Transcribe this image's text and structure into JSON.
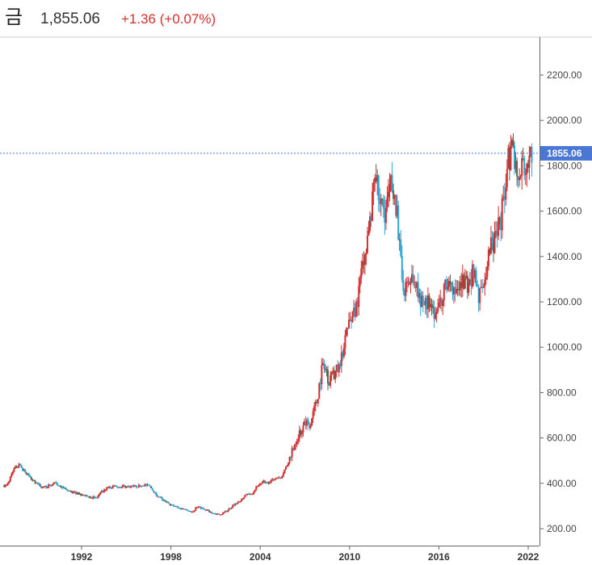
{
  "header": {
    "symbol": "금",
    "price": "1,855.06",
    "change": "+1.36 (+0.07%)"
  },
  "colors": {
    "up": "#d32f2f",
    "down": "#2aa6d6",
    "neutral": "#4e6b57",
    "current_line": "#4a77d4",
    "axis": "#666666"
  },
  "chart_data": {
    "type": "candlestick",
    "y_ticks": [
      "2200.00",
      "2000.00",
      "1800.00",
      "1600.00",
      "1400.00",
      "1200.00",
      "1000.00",
      "800.00",
      "600.00",
      "400.00",
      "200.00"
    ],
    "x_ticks": [
      "1992",
      "1998",
      "2004",
      "2010",
      "2016",
      "2022"
    ],
    "ylim": [
      150,
      2380
    ],
    "xlim": [
      1986.5,
      2022.8
    ],
    "current_value": 1855.06,
    "current_label": "1855.06",
    "series": [
      [
        1987.0,
        390
      ],
      [
        1987.4,
        460
      ],
      [
        1987.8,
        480
      ],
      [
        1988.2,
        450
      ],
      [
        1988.6,
        420
      ],
      [
        1989.0,
        400
      ],
      [
        1989.4,
        380
      ],
      [
        1989.8,
        390
      ],
      [
        1990.2,
        400
      ],
      [
        1990.6,
        385
      ],
      [
        1991.0,
        370
      ],
      [
        1991.4,
        360
      ],
      [
        1991.8,
        355
      ],
      [
        1992.2,
        345
      ],
      [
        1992.6,
        340
      ],
      [
        1993.0,
        335
      ],
      [
        1993.4,
        365
      ],
      [
        1993.8,
        380
      ],
      [
        1994.2,
        385
      ],
      [
        1994.6,
        388
      ],
      [
        1995.0,
        385
      ],
      [
        1995.4,
        386
      ],
      [
        1995.8,
        388
      ],
      [
        1996.2,
        395
      ],
      [
        1996.6,
        385
      ],
      [
        1997.0,
        350
      ],
      [
        1997.4,
        330
      ],
      [
        1997.8,
        310
      ],
      [
        1998.2,
        300
      ],
      [
        1998.6,
        290
      ],
      [
        1999.0,
        285
      ],
      [
        1999.4,
        270
      ],
      [
        1999.8,
        300
      ],
      [
        2000.2,
        285
      ],
      [
        2000.6,
        275
      ],
      [
        2001.0,
        265
      ],
      [
        2001.4,
        265
      ],
      [
        2001.8,
        280
      ],
      [
        2002.2,
        305
      ],
      [
        2002.6,
        320
      ],
      [
        2003.0,
        350
      ],
      [
        2003.4,
        350
      ],
      [
        2003.8,
        390
      ],
      [
        2004.2,
        405
      ],
      [
        2004.6,
        400
      ],
      [
        2005.0,
        425
      ],
      [
        2005.4,
        430
      ],
      [
        2005.8,
        480
      ],
      [
        2006.2,
        560
      ],
      [
        2006.6,
        620
      ],
      [
        2007.0,
        660
      ],
      [
        2007.4,
        670
      ],
      [
        2007.8,
        760
      ],
      [
        2008.2,
        930
      ],
      [
        2008.6,
        860
      ],
      [
        2009.0,
        880
      ],
      [
        2009.4,
        930
      ],
      [
        2009.8,
        1100
      ],
      [
        2010.2,
        1120
      ],
      [
        2010.6,
        1230
      ],
      [
        2010.9,
        1380
      ],
      [
        2011.3,
        1500
      ],
      [
        2011.7,
        1800
      ],
      [
        2012.0,
        1650
      ],
      [
        2012.4,
        1600
      ],
      [
        2012.8,
        1720
      ],
      [
        2013.2,
        1600
      ],
      [
        2013.5,
        1300
      ],
      [
        2013.8,
        1250
      ],
      [
        2014.2,
        1320
      ],
      [
        2014.6,
        1250
      ],
      [
        2014.9,
        1200
      ],
      [
        2015.3,
        1190
      ],
      [
        2015.7,
        1130
      ],
      [
        2016.0,
        1170
      ],
      [
        2016.4,
        1290
      ],
      [
        2016.8,
        1240
      ],
      [
        2017.2,
        1250
      ],
      [
        2017.6,
        1290
      ],
      [
        2017.9,
        1280
      ],
      [
        2018.3,
        1330
      ],
      [
        2018.7,
        1210
      ],
      [
        2019.0,
        1300
      ],
      [
        2019.4,
        1420
      ],
      [
        2019.8,
        1480
      ],
      [
        2020.2,
        1580
      ],
      [
        2020.6,
        1800
      ],
      [
        2020.9,
        1880
      ],
      [
        2021.2,
        1780
      ],
      [
        2021.6,
        1800
      ],
      [
        2021.9,
        1800
      ],
      [
        2022.2,
        1855
      ]
    ]
  }
}
